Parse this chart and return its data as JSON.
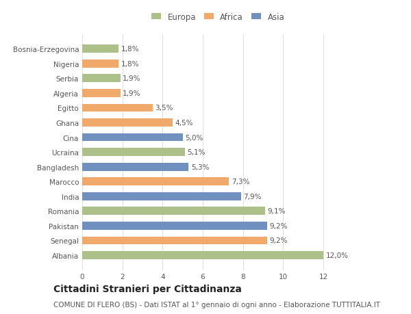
{
  "countries": [
    "Bosnia-Erzegovina",
    "Nigeria",
    "Serbia",
    "Algeria",
    "Egitto",
    "Ghana",
    "Cina",
    "Ucraina",
    "Bangladesh",
    "Marocco",
    "India",
    "Romania",
    "Pakistan",
    "Senegal",
    "Albania"
  ],
  "values": [
    1.8,
    1.8,
    1.9,
    1.9,
    3.5,
    4.5,
    5.0,
    5.1,
    5.3,
    7.3,
    7.9,
    9.1,
    9.2,
    9.2,
    12.0
  ],
  "continents": [
    "Europa",
    "Africa",
    "Europa",
    "Africa",
    "Africa",
    "Africa",
    "Asia",
    "Europa",
    "Asia",
    "Africa",
    "Asia",
    "Europa",
    "Asia",
    "Africa",
    "Europa"
  ],
  "colors": {
    "Europa": "#aec08a",
    "Africa": "#f0a96a",
    "Asia": "#7090c0"
  },
  "labels": [
    "1,8%",
    "1,8%",
    "1,9%",
    "1,9%",
    "3,5%",
    "4,5%",
    "5,0%",
    "5,1%",
    "5,3%",
    "7,3%",
    "7,9%",
    "9,1%",
    "9,2%",
    "9,2%",
    "12,0%"
  ],
  "title": "Cittadini Stranieri per Cittadinanza",
  "subtitle": "COMUNE DI FLERO (BS) - Dati ISTAT al 1° gennaio di ogni anno - Elaborazione TUTTITALIA.IT",
  "legend_labels": [
    "Europa",
    "Africa",
    "Asia"
  ],
  "xlim": [
    0,
    13.5
  ],
  "xticks": [
    0,
    2,
    4,
    6,
    8,
    10,
    12
  ],
  "background_color": "#ffffff",
  "bar_height": 0.55,
  "grid_color": "#dddddd",
  "text_color": "#555555",
  "label_fontsize": 7.5,
  "tick_fontsize": 7.5,
  "title_fontsize": 10,
  "subtitle_fontsize": 7.5,
  "legend_fontsize": 8.5
}
